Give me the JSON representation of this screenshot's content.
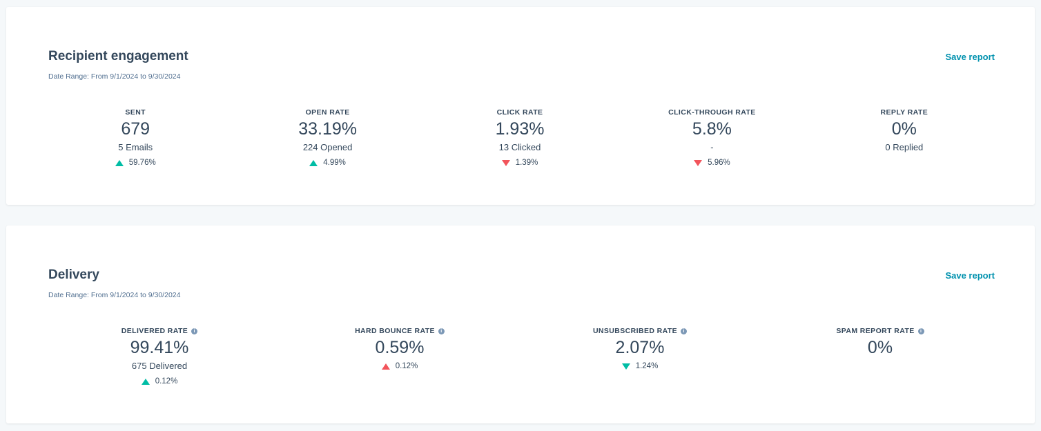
{
  "colors": {
    "positive": "#00bda5",
    "negative": "#f2545b",
    "link": "#0091ae"
  },
  "engagement": {
    "title": "Recipient engagement",
    "date_range": "Date Range: From 9/1/2024 to 9/30/2024",
    "save_label": "Save report",
    "stats": [
      {
        "label": "SENT",
        "value": "679",
        "sub": "5 Emails",
        "change": "59.76%",
        "direction": "up",
        "good": true
      },
      {
        "label": "OPEN RATE",
        "value": "33.19%",
        "sub": "224 Opened",
        "change": "4.99%",
        "direction": "up",
        "good": true
      },
      {
        "label": "CLICK RATE",
        "value": "1.93%",
        "sub": "13 Clicked",
        "change": "1.39%",
        "direction": "down",
        "good": false
      },
      {
        "label": "CLICK-THROUGH RATE",
        "value": "5.8%",
        "sub": "-",
        "change": "5.96%",
        "direction": "down",
        "good": false
      },
      {
        "label": "REPLY RATE",
        "value": "0%",
        "sub": "0 Replied"
      }
    ]
  },
  "delivery": {
    "title": "Delivery",
    "date_range": "Date Range: From 9/1/2024 to 9/30/2024",
    "save_label": "Save report",
    "stats": [
      {
        "label": "DELIVERED RATE",
        "value": "99.41%",
        "sub": "675 Delivered",
        "change": "0.12%",
        "direction": "up",
        "good": true
      },
      {
        "label": "HARD BOUNCE RATE",
        "value": "0.59%",
        "change": "0.12%",
        "direction": "up",
        "good": false
      },
      {
        "label": "UNSUBSCRIBED RATE",
        "value": "2.07%",
        "change": "1.24%",
        "direction": "down",
        "good": true
      },
      {
        "label": "SPAM REPORT RATE",
        "value": "0%"
      }
    ]
  }
}
